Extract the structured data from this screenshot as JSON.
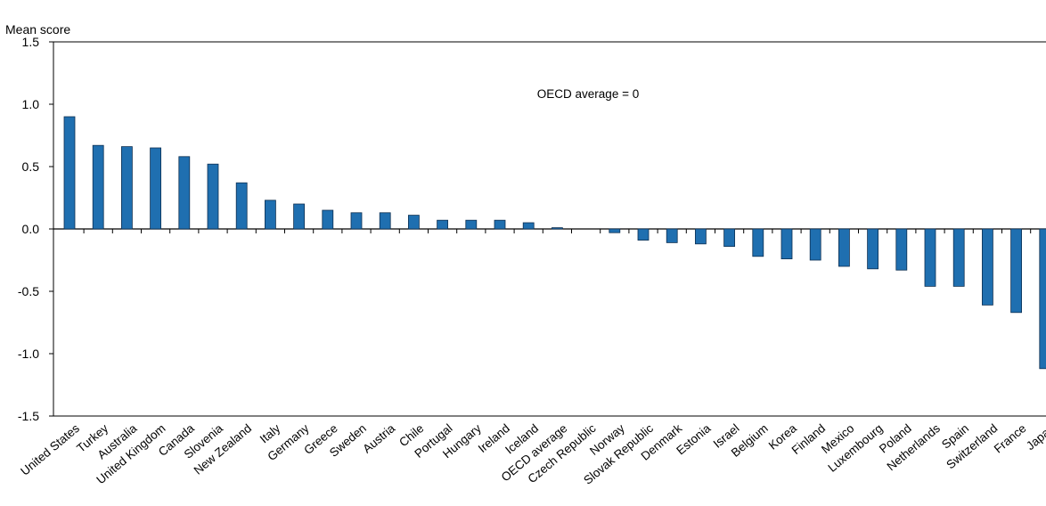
{
  "chart_data": {
    "type": "bar",
    "title": "",
    "ylabel": "Mean score",
    "xlabel": "",
    "annotation": "OECD average = 0",
    "ylim": [
      -1.5,
      1.5
    ],
    "yticks": [
      1.5,
      1.0,
      0.5,
      0.0,
      -0.5,
      -1.0,
      -1.5
    ],
    "ytick_labels": [
      "1.5",
      "1.0",
      "0.5",
      "0.0",
      "-0.5",
      "-1.0",
      "-1.5"
    ],
    "grid": false,
    "bar_color": "#1f6fb0",
    "categories": [
      "United States",
      "Turkey",
      "Australia",
      "United Kingdom",
      "Canada",
      "Slovenia",
      "New Zealand",
      "Italy",
      "Germany",
      "Greece",
      "Sweden",
      "Austria",
      "Chile",
      "Portugal",
      "Hungary",
      "Ireland",
      "Iceland",
      "OECD average",
      "Czech Republic",
      "Norway",
      "Slovak Republic",
      "Denmark",
      "Estonia",
      "Israel",
      "Belgium",
      "Korea",
      "Finland",
      "Mexico",
      "Luxembourg",
      "Poland",
      "Netherlands",
      "Spain",
      "Switzerland",
      "France",
      "Japan"
    ],
    "values": [
      0.9,
      0.67,
      0.66,
      0.65,
      0.58,
      0.52,
      0.37,
      0.23,
      0.2,
      0.15,
      0.13,
      0.13,
      0.11,
      0.07,
      0.07,
      0.07,
      0.05,
      0.01,
      0.0,
      -0.03,
      -0.09,
      -0.11,
      -0.12,
      -0.14,
      -0.22,
      -0.24,
      -0.25,
      -0.3,
      -0.32,
      -0.33,
      -0.46,
      -0.46,
      -0.61,
      -0.67,
      -1.12
    ]
  }
}
